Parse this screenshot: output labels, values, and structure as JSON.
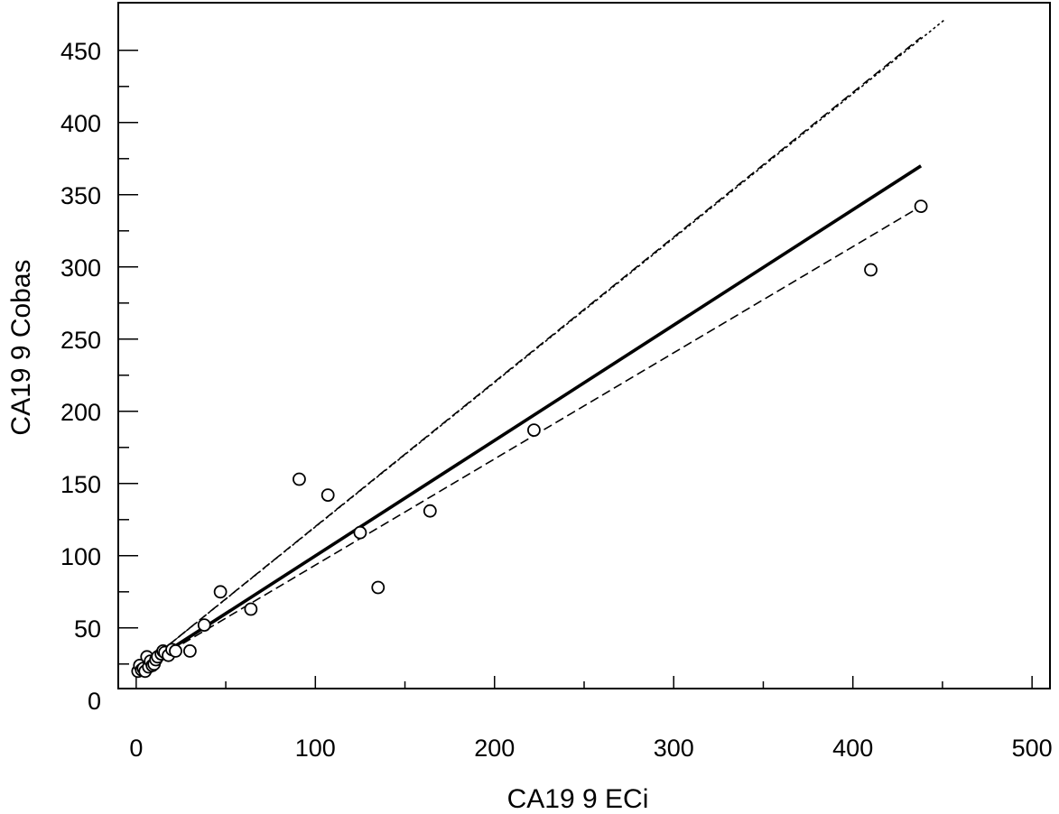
{
  "chart_data": {
    "type": "scatter",
    "title": "",
    "xlabel": "CA19 9 ECi",
    "ylabel": "CA19 9 Cobas",
    "xlim": [
      -10,
      510
    ],
    "ylim": [
      8,
      483
    ],
    "xticks": [
      0,
      100,
      200,
      300,
      400,
      500
    ],
    "yticks": [
      0,
      50,
      100,
      150,
      200,
      250,
      300,
      350,
      400,
      450
    ],
    "minor_xticks": [
      50,
      150,
      250,
      350,
      450
    ],
    "minor_yticks": [
      25,
      75,
      125,
      175,
      225,
      275,
      325,
      375,
      425
    ],
    "grid": false,
    "legend": "none",
    "points": [
      {
        "x": 1,
        "y": 20
      },
      {
        "x": 2,
        "y": 24
      },
      {
        "x": 3,
        "y": 21
      },
      {
        "x": 4,
        "y": 22
      },
      {
        "x": 5,
        "y": 20
      },
      {
        "x": 6,
        "y": 30
      },
      {
        "x": 7,
        "y": 23
      },
      {
        "x": 8,
        "y": 27
      },
      {
        "x": 9,
        "y": 24
      },
      {
        "x": 10,
        "y": 25
      },
      {
        "x": 11,
        "y": 28
      },
      {
        "x": 12,
        "y": 30
      },
      {
        "x": 14,
        "y": 32
      },
      {
        "x": 15,
        "y": 34
      },
      {
        "x": 16,
        "y": 33
      },
      {
        "x": 18,
        "y": 31
      },
      {
        "x": 20,
        "y": 35
      },
      {
        "x": 22,
        "y": 34
      },
      {
        "x": 30,
        "y": 34
      },
      {
        "x": 38,
        "y": 52
      },
      {
        "x": 47,
        "y": 75
      },
      {
        "x": 64,
        "y": 63
      },
      {
        "x": 91,
        "y": 153
      },
      {
        "x": 107,
        "y": 142
      },
      {
        "x": 125,
        "y": 116
      },
      {
        "x": 135,
        "y": 78
      },
      {
        "x": 164,
        "y": 131
      },
      {
        "x": 222,
        "y": 187
      },
      {
        "x": 410,
        "y": 298
      },
      {
        "x": 438,
        "y": 342
      }
    ],
    "lines": [
      {
        "style": "solid-thin",
        "x": [
          0,
          30
        ],
        "y": [
          20,
          50
        ]
      },
      {
        "style": "dotted",
        "x": [
          0,
          451
        ],
        "y": [
          20,
          471
        ]
      },
      {
        "style": "dashed-upper",
        "x": [
          0,
          438
        ],
        "y": [
          20,
          459
        ]
      },
      {
        "style": "solid-regression",
        "x": [
          0,
          438
        ],
        "y": [
          20,
          370
        ]
      },
      {
        "style": "dashed-lower",
        "x": [
          0,
          438
        ],
        "y": [
          20,
          342
        ]
      }
    ]
  }
}
